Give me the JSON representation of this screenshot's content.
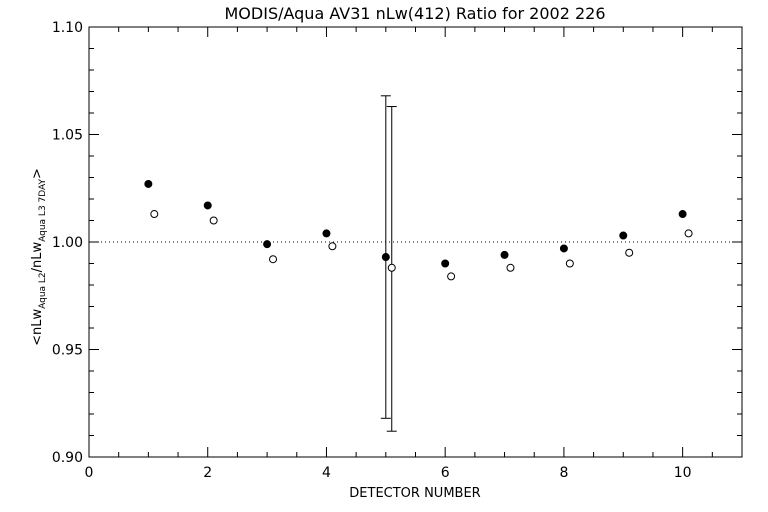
{
  "chart_data": {
    "type": "scatter",
    "title": "MODIS/Aqua AV31 nLw(412) Ratio for 2002 226",
    "xlabel": "DETECTOR NUMBER",
    "ylabel": {
      "prefix": "<nLw",
      "sub1": "Aqua L2",
      "mid": "/nLw",
      "sub2": "Aqua L3 7DAY",
      "suffix": ">"
    },
    "xlim": [
      0,
      11
    ],
    "ylim": [
      0.9,
      1.1
    ],
    "x_ticks": [
      "0",
      "2",
      "4",
      "6",
      "8",
      "10"
    ],
    "y_ticks": [
      "0.90",
      "0.95",
      "1.00",
      "1.05",
      "1.10"
    ],
    "reference_line": {
      "y": 1.0,
      "style": "dotted"
    },
    "grid": false,
    "series": [
      {
        "marker": "filled-circle",
        "x": [
          1,
          2,
          3,
          4,
          5,
          6,
          7,
          8,
          9,
          10
        ],
        "y": [
          1.027,
          1.017,
          0.999,
          1.004,
          0.993,
          0.99,
          0.994,
          0.997,
          1.003,
          1.013
        ]
      },
      {
        "marker": "open-circle",
        "x": [
          1.1,
          2.1,
          3.1,
          4.1,
          5.1,
          6.1,
          7.1,
          8.1,
          9.1,
          10.1
        ],
        "y": [
          1.013,
          1.01,
          0.992,
          0.998,
          0.988,
          0.984,
          0.988,
          0.99,
          0.995,
          1.004
        ]
      }
    ],
    "error_bars": [
      {
        "x": 5.0,
        "low": 0.918,
        "high": 1.068
      },
      {
        "x": 5.1,
        "low": 0.912,
        "high": 1.063
      }
    ]
  }
}
